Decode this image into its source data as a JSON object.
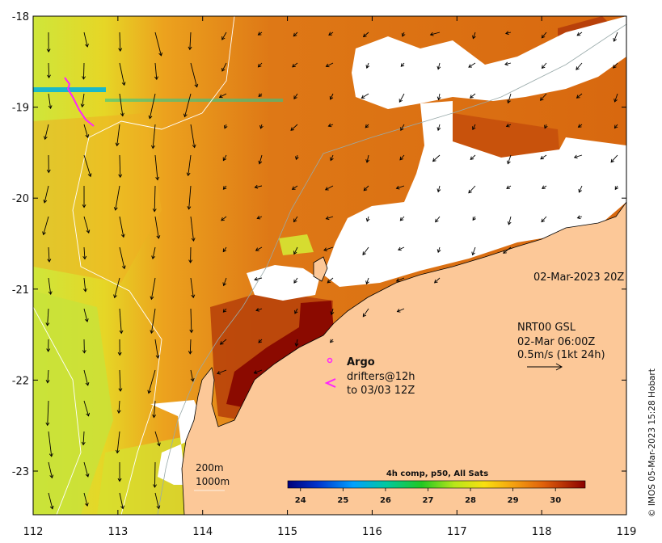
{
  "map": {
    "date_label": "02-Mar-2023 20Z",
    "currents": {
      "line1": "NRT00 GSL",
      "line2": "02-Mar 06:00Z",
      "line3": "0.5m/s (1kt 24h)"
    },
    "argo": {
      "marker": "o",
      "label": "Argo"
    },
    "drifters": {
      "marker": "<",
      "line1": "drifters@12h",
      "line2": "to 03/03 12Z"
    },
    "isobaths": [
      "200m",
      "1000m"
    ],
    "credit": "© IMOS 05-Mar-2023 15:28 Hobart",
    "colorbar": {
      "title": "4h comp, p50, All Sats",
      "ticks": [
        "24",
        "25",
        "26",
        "27",
        "28",
        "29",
        "30"
      ],
      "range": [
        23.7,
        30.7
      ]
    },
    "axes": {
      "x_ticks": [
        "112",
        "113",
        "114",
        "115",
        "116",
        "117",
        "118",
        "119"
      ],
      "y_ticks": [
        "-18",
        "-19",
        "-20",
        "-21",
        "-22",
        "-23"
      ]
    },
    "colors": {
      "land": "#fcc898",
      "ocean_warm": "#d9620e",
      "ocean_hot": "#8b0a00",
      "ocean_cool": "#cfe63a",
      "cloud": "#ffffff",
      "drifter": "#ff22ff"
    }
  }
}
